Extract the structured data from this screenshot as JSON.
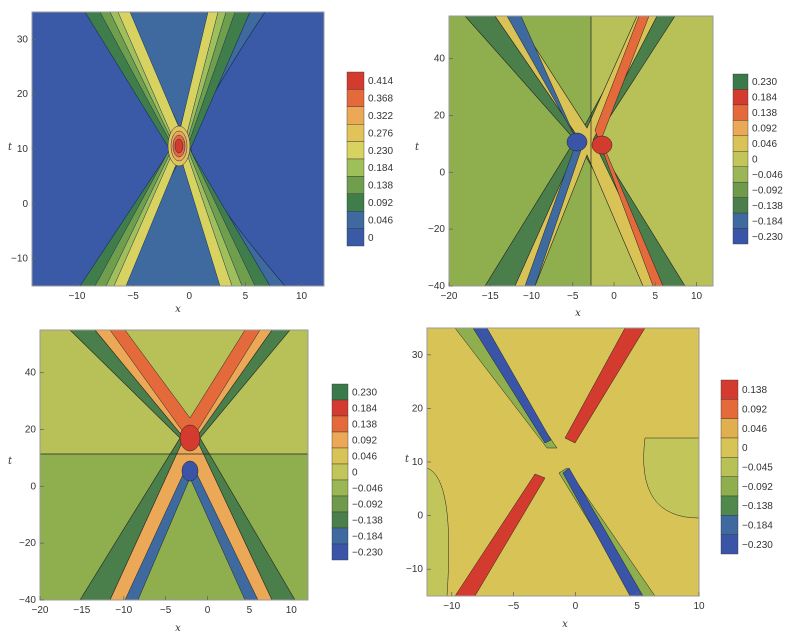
{
  "chart_data": [
    {
      "type": "contour",
      "xlabel": "x",
      "ylabel": "t",
      "xlim": [
        -14,
        12
      ],
      "ylim": [
        -15,
        35
      ],
      "x_ticks": [
        -10,
        -5,
        0,
        5,
        10
      ],
      "y_ticks": [
        -10,
        0,
        10,
        20,
        30
      ],
      "contour_levels": [
        0,
        0.046,
        0.092,
        0.138,
        0.184,
        0.23,
        0.276,
        0.322,
        0.368,
        0.414
      ],
      "legend_labels": [
        "0.414",
        "0.368",
        "0.322",
        "0.276",
        "0.230",
        "0.184",
        "0.138",
        "0.092",
        "0.046",
        "0"
      ],
      "legend_colors": [
        "#d43b2f",
        "#e46a3c",
        "#eba857",
        "#e2c35a",
        "#d8d261",
        "#9fbf5a",
        "#6f9e4c",
        "#3f7d4a",
        "#3e6aa0",
        "#3a5aa8"
      ],
      "background_color": "#3a5aa8",
      "peak": {
        "x": -2.5,
        "t": 10,
        "value": 0.414
      }
    },
    {
      "type": "contour",
      "xlabel": "x",
      "ylabel": "t",
      "xlim": [
        -20,
        12
      ],
      "ylim": [
        -40,
        55
      ],
      "x_ticks": [
        -20,
        -15,
        -10,
        -5,
        0,
        5,
        10
      ],
      "y_ticks": [
        -40,
        -20,
        0,
        20,
        40
      ],
      "contour_levels": [
        -0.23,
        -0.184,
        -0.138,
        -0.092,
        -0.046,
        0,
        0.046,
        0.092,
        0.138,
        0.184,
        0.23
      ],
      "legend_labels": [
        "0.230",
        "0.184",
        "0.138",
        "0.092",
        "0.046",
        "0",
        "−0.046",
        "−0.092",
        "−0.138",
        "−0.184",
        "−0.230"
      ],
      "legend_colors": [
        "#3a7a4a",
        "#d43b2f",
        "#e46a3c",
        "#eba857",
        "#d9c356",
        "#c2c55a",
        "#9bb655",
        "#6f9a4c",
        "#4a7f4c",
        "#3e6aa0",
        "#3a55a8"
      ],
      "background_color": "#8fae4e",
      "extrema": [
        {
          "x": -4,
          "t": 10,
          "sign": "min"
        },
        {
          "x": -1.5,
          "t": 10,
          "sign": "max"
        }
      ]
    },
    {
      "type": "contour",
      "xlabel": "x",
      "ylabel": "t",
      "xlim": [
        -20,
        12
      ],
      "ylim": [
        -40,
        55
      ],
      "x_ticks": [
        -20,
        -15,
        -10,
        -5,
        0,
        5,
        10
      ],
      "y_ticks": [
        -40,
        -20,
        0,
        20,
        40
      ],
      "contour_levels": [
        -0.23,
        -0.184,
        -0.138,
        -0.092,
        -0.046,
        0,
        0.046,
        0.092,
        0.138,
        0.184,
        0.23
      ],
      "legend_labels": [
        "0.230",
        "0.184",
        "0.138",
        "0.092",
        "0.046",
        "0",
        "−0.046",
        "−0.092",
        "−0.138",
        "−0.184",
        "−0.230"
      ],
      "legend_colors": [
        "#3a7a4a",
        "#d43b2f",
        "#e46a3c",
        "#eba857",
        "#d9c356",
        "#c2c55a",
        "#9bb655",
        "#6f9a4c",
        "#4a7f4c",
        "#3e6aa0",
        "#3a55a8"
      ],
      "background_color": "#8fae4e",
      "extrema": [
        {
          "x": -3,
          "t": 16,
          "sign": "max"
        },
        {
          "x": -3,
          "t": 4,
          "sign": "min"
        }
      ]
    },
    {
      "type": "contour",
      "xlabel": "x",
      "ylabel": "t",
      "xlim": [
        -12,
        10
      ],
      "ylim": [
        -15,
        35
      ],
      "x_ticks": [
        -10,
        -5,
        0,
        5,
        10
      ],
      "y_ticks": [
        -10,
        0,
        10,
        20,
        30
      ],
      "contour_levels": [
        -0.23,
        -0.184,
        -0.138,
        -0.092,
        -0.045,
        0,
        0.046,
        0.092,
        0.138
      ],
      "legend_labels": [
        "0.138",
        "0.092",
        "0.046",
        "0",
        "−0.045",
        "−0.092",
        "−0.138",
        "−0.184",
        "−0.230"
      ],
      "legend_colors": [
        "#d43b2f",
        "#e46a3c",
        "#e0b050",
        "#d8c456",
        "#b8c058",
        "#8fae4e",
        "#4f8a4c",
        "#3e6aa0",
        "#3a55a8"
      ],
      "background_color": "#d8c456"
    }
  ]
}
